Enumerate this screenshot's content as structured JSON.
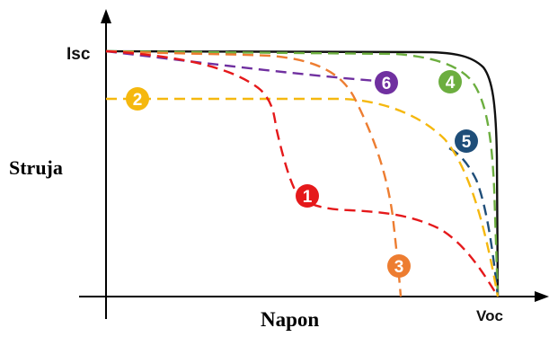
{
  "labels": {
    "isc": "Isc",
    "voc": "Voc",
    "y_axis": "Struja",
    "x_axis": "Napon"
  },
  "curves": [
    {
      "id": "ideal",
      "color": "#111111",
      "dashed": false,
      "marker": ""
    },
    {
      "id": "1",
      "color": "#e5191b",
      "dashed": true,
      "marker": "1"
    },
    {
      "id": "2",
      "color": "#f5b80f",
      "dashed": true,
      "marker": "2"
    },
    {
      "id": "3",
      "color": "#ed7d31",
      "dashed": true,
      "marker": "3"
    },
    {
      "id": "4",
      "color": "#6cae3f",
      "dashed": true,
      "marker": "4"
    },
    {
      "id": "5",
      "color": "#1f4e79",
      "dashed": true,
      "marker": "5"
    },
    {
      "id": "6",
      "color": "#7030a0",
      "dashed": true,
      "marker": "6"
    }
  ]
}
